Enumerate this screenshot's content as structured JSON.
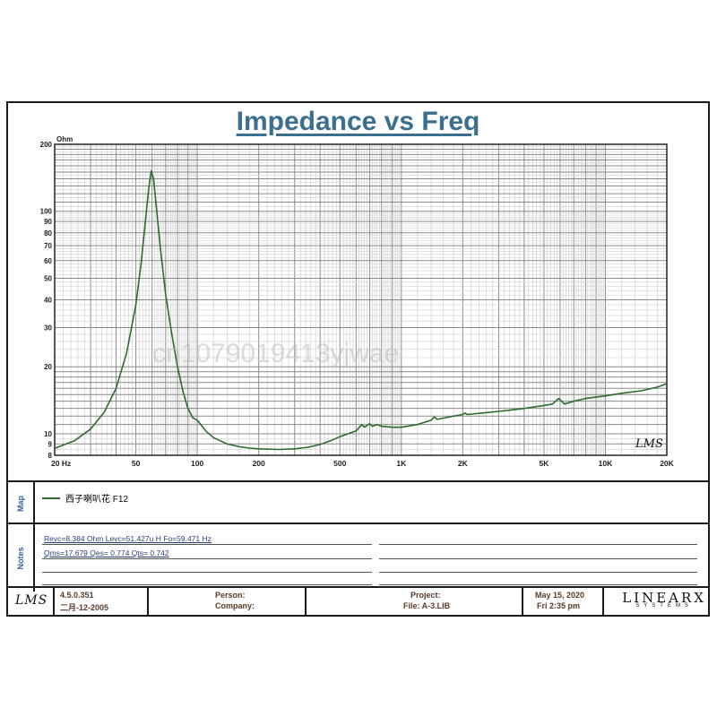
{
  "title": "Impedance vs Freq",
  "watermark": "cn1079019413yjwae",
  "chart_data": {
    "type": "line",
    "title": "Impedance vs Freq",
    "ylabel": "Ohm",
    "xlabel": "",
    "x_scale": "log",
    "y_scale": "log",
    "xlim": [
      20,
      20000
    ],
    "ylim": [
      8,
      200
    ],
    "x_tick_labels": [
      {
        "value": 20,
        "label": "20  Hz"
      },
      {
        "value": 50,
        "label": "50"
      },
      {
        "value": 100,
        "label": "100"
      },
      {
        "value": 200,
        "label": "200"
      },
      {
        "value": 500,
        "label": "500"
      },
      {
        "value": 1000,
        "label": "1K"
      },
      {
        "value": 2000,
        "label": "2K"
      },
      {
        "value": 5000,
        "label": "5K"
      },
      {
        "value": 10000,
        "label": "10K"
      },
      {
        "value": 20000,
        "label": "20K"
      }
    ],
    "y_tick_labels": [
      {
        "value": 200,
        "label": "200"
      },
      {
        "value": 100,
        "label": "100"
      },
      {
        "value": 90,
        "label": "90"
      },
      {
        "value": 80,
        "label": "80"
      },
      {
        "value": 70,
        "label": "70"
      },
      {
        "value": 60,
        "label": "60"
      },
      {
        "value": 50,
        "label": "50"
      },
      {
        "value": 40,
        "label": "40"
      },
      {
        "value": 30,
        "label": "30"
      },
      {
        "value": 20,
        "label": "20"
      },
      {
        "value": 10,
        "label": "10"
      },
      {
        "value": 9,
        "label": "9"
      },
      {
        "value": 8,
        "label": "8"
      }
    ],
    "grid": true,
    "series": [
      {
        "name": "西子喇叭花  F12",
        "color": "#2e6b2e",
        "x": [
          20,
          25,
          30,
          35,
          40,
          45,
          50,
          53,
          56,
          58,
          59.5,
          61,
          63,
          66,
          70,
          75,
          80,
          85,
          90,
          95,
          100,
          110,
          120,
          140,
          160,
          180,
          200,
          250,
          300,
          350,
          400,
          450,
          500,
          550,
          600,
          640,
          660,
          700,
          720,
          760,
          800,
          900,
          1000,
          1200,
          1400,
          1450,
          1500,
          1800,
          2000,
          2050,
          2100,
          2500,
          3000,
          3500,
          4000,
          5000,
          5500,
          5900,
          6000,
          6100,
          6300,
          7000,
          8000,
          10000,
          12000,
          15000,
          18000,
          20000
        ],
        "y": [
          8.6,
          9.3,
          10.5,
          12.5,
          16,
          23,
          38,
          58,
          95,
          130,
          152,
          140,
          105,
          68,
          42,
          28,
          20,
          15.5,
          13,
          11.8,
          11.5,
          10.3,
          9.6,
          9.0,
          8.75,
          8.62,
          8.55,
          8.5,
          8.55,
          8.7,
          8.95,
          9.3,
          9.7,
          10.0,
          10.3,
          11.0,
          10.7,
          11.1,
          10.8,
          11.0,
          10.8,
          10.7,
          10.7,
          11.0,
          11.5,
          11.9,
          11.6,
          12.0,
          12.2,
          12.4,
          12.2,
          12.4,
          12.6,
          12.8,
          13.0,
          13.4,
          13.6,
          14.4,
          14.2,
          14.0,
          13.6,
          14.0,
          14.4,
          14.8,
          15.2,
          15.6,
          16.2,
          16.8
        ]
      }
    ]
  },
  "sections": {
    "map_label": "Map",
    "notes_label": "Notes"
  },
  "legend": {
    "entry": "西子喇叭花  F12"
  },
  "notes": {
    "line1": "Revc=8.384 Ohm  Levc=51.427u H  Fo=59.471 Hz",
    "line2": "Qms=17.679  Qes= 0.774  Qts= 0.742"
  },
  "footer": {
    "logo": "LMS",
    "version": "4.5.0.351",
    "build_date": "二月-12-2005",
    "person_label": "Person:",
    "company_label": "Company:",
    "project_label": "Project:",
    "file_label": "File: A-3.LIB",
    "date": "May 15, 2020",
    "time": "Fri  2:35 pm",
    "brand_top": "LINEARX",
    "brand_bottom": "SYSTEMS"
  },
  "plot_logo": "LMS"
}
